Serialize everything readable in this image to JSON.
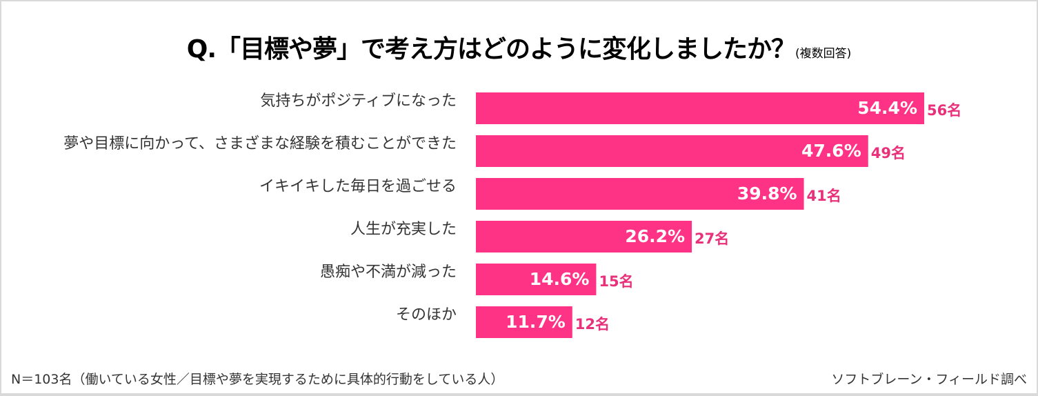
{
  "title": {
    "main": "Q.「目標や夢」で考え方はどのように変化しましたか？",
    "sub": "(複数回答)"
  },
  "chart_data": {
    "type": "bar",
    "orientation": "horizontal",
    "categories": [
      "気持ちがポジティブになった",
      "夢や目標に向かって、さまざまな経験を積むことができた",
      "イキイキした毎日を過ごせる",
      "人生が充実した",
      "愚痴や不満が減った",
      "そのほか"
    ],
    "values": [
      54.4,
      47.6,
      39.8,
      26.2,
      14.6,
      11.7
    ],
    "value_labels": [
      "54.4%",
      "47.6%",
      "39.8%",
      "26.2%",
      "14.6%",
      "11.7%"
    ],
    "count_labels": [
      "56名",
      "49名",
      "41名",
      "27名",
      "15名",
      "12名"
    ],
    "unit": "%",
    "grid": false,
    "legend": "none",
    "colors": {
      "bar": "#ff3385",
      "count_text": "#e8317a",
      "value_text": "#ffffff"
    }
  },
  "footer": {
    "note": "N＝103名（働いている女性／目標や夢を実現するために具体的行動をしている人）",
    "source": "ソフトブレーン・フィールド調べ"
  }
}
